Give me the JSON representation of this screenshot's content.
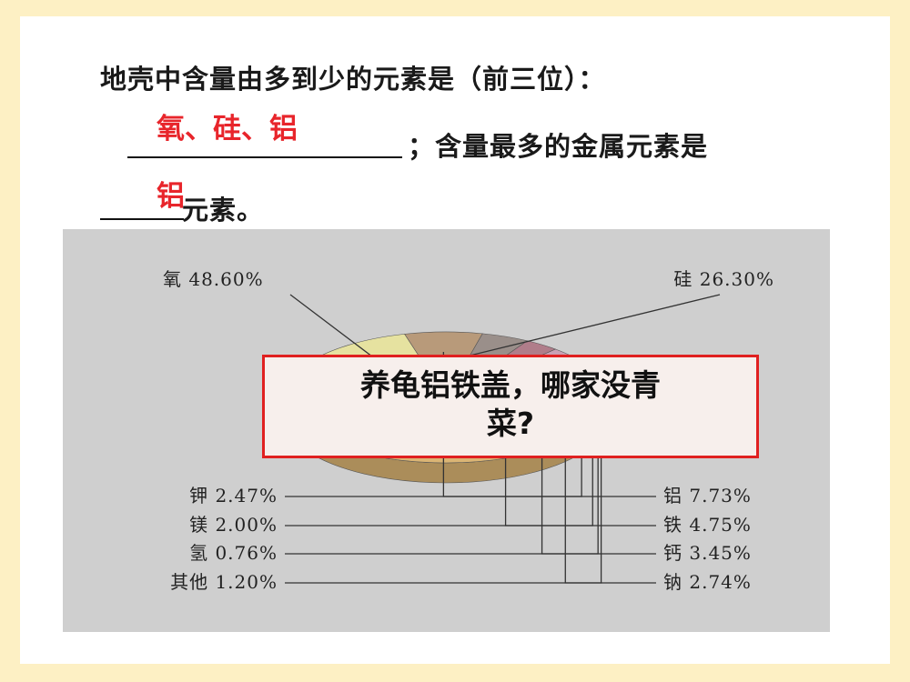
{
  "question": {
    "line1": "地壳中含量由多到少的元素是（前三位）：",
    "line2_after_blank": "；含量最多的金属元素是",
    "line3_after_blank": "元素。"
  },
  "answers": {
    "blank1": "氧、硅、铝",
    "blank2": "铝"
  },
  "callout": {
    "line1": "养龟铝铁盖，哪家没青",
    "line2": "菜?"
  },
  "chart_data": {
    "type": "pie",
    "unit": "%",
    "slices": [
      {
        "label": "氧",
        "value": 48.6,
        "text": "氧 48.60%",
        "color": "#dbb574"
      },
      {
        "label": "硅",
        "value": 26.3,
        "text": "硅 26.30%",
        "color": "#e6e2a0"
      },
      {
        "label": "铝",
        "value": 7.73,
        "text": "铝 7.73%",
        "color": "#b89a7a"
      },
      {
        "label": "铁",
        "value": 4.75,
        "text": "铁 4.75%",
        "color": "#9a8f8a"
      },
      {
        "label": "钙",
        "value": 3.45,
        "text": "钙 3.45%",
        "color": "#b07d8a"
      },
      {
        "label": "钠",
        "value": 2.74,
        "text": "钠 2.74%",
        "color": "#c9a0b4"
      },
      {
        "label": "钾",
        "value": 2.47,
        "text": "钾 2.47%",
        "color": "#7f8fa8"
      },
      {
        "label": "镁",
        "value": 2.0,
        "text": "镁 2.00%",
        "color": "#8b9bb5"
      },
      {
        "label": "氢",
        "value": 0.76,
        "text": "氢 0.76%",
        "color": "#a9b3c4"
      },
      {
        "label": "其他",
        "value": 1.2,
        "text": "其他 1.20%",
        "color": "#c7c7c7"
      }
    ]
  }
}
